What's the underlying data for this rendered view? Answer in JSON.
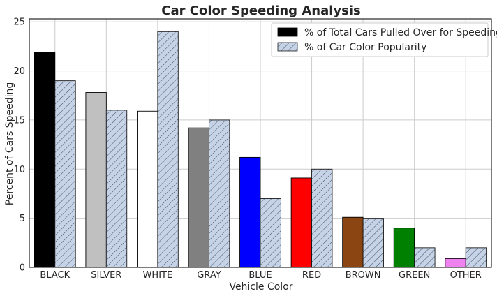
{
  "chart_data": {
    "type": "bar",
    "title": "Car Color Speeding Analysis",
    "xlabel": "Vehicle Color",
    "ylabel": "Percent of Cars Speeding",
    "ylim": [
      0,
      25.3
    ],
    "yticks": [
      "0",
      "5",
      "10",
      "15",
      "20",
      "25"
    ],
    "grid": true,
    "legend_position": "top-right",
    "categories": [
      "BLACK",
      "SILVER",
      "WHITE",
      "GRAY",
      "BLUE",
      "RED",
      "BROWN",
      "GREEN",
      "OTHER"
    ],
    "series": [
      {
        "name": "% of Total Cars Pulled Over for Speeding",
        "values": [
          21.9,
          17.8,
          15.9,
          14.2,
          11.2,
          9.1,
          5.1,
          4.0,
          0.9
        ],
        "colors": [
          "#000000",
          "#c0c0c0",
          "#ffffff",
          "#808080",
          "#0000ff",
          "#ff0000",
          "#8b4513",
          "#008000",
          "#ee82ee"
        ]
      },
      {
        "name": "% of Car Color Popularity",
        "values": [
          19.0,
          16.0,
          24.0,
          15.0,
          7.0,
          10.0,
          5.0,
          2.0,
          2.0
        ],
        "color": "#c6d3e6",
        "hatch": "diagonal"
      }
    ]
  }
}
